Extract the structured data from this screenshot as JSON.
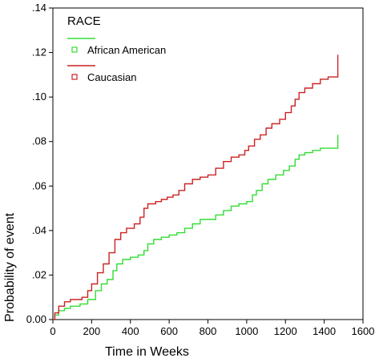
{
  "chart_data": {
    "type": "line",
    "title": "",
    "xlabel": "Time in Weeks",
    "ylabel": "Probability of event",
    "xlim": [
      0,
      1600
    ],
    "ylim": [
      0,
      0.14
    ],
    "x_ticks": [
      "0",
      "200",
      "400",
      "600",
      "800",
      "1000",
      "1200",
      "1400",
      "1600"
    ],
    "y_ticks": [
      "0.00",
      ".02",
      ".04",
      ".06",
      ".08",
      ".10",
      ".12",
      ".14"
    ],
    "grid": false,
    "legend": {
      "title": "RACE",
      "position": "top-left"
    },
    "series": [
      {
        "name": "African American",
        "color": "#33dd33",
        "marker": "square",
        "points": [
          [
            0,
            0
          ],
          [
            10,
            0.002
          ],
          [
            30,
            0.004
          ],
          [
            60,
            0.005
          ],
          [
            90,
            0.006
          ],
          [
            140,
            0.007
          ],
          [
            180,
            0.009
          ],
          [
            220,
            0.013
          ],
          [
            250,
            0.016
          ],
          [
            280,
            0.018
          ],
          [
            310,
            0.022
          ],
          [
            330,
            0.025
          ],
          [
            360,
            0.027
          ],
          [
            400,
            0.028
          ],
          [
            440,
            0.029
          ],
          [
            470,
            0.031
          ],
          [
            490,
            0.034
          ],
          [
            520,
            0.036
          ],
          [
            560,
            0.037
          ],
          [
            600,
            0.038
          ],
          [
            640,
            0.039
          ],
          [
            680,
            0.041
          ],
          [
            720,
            0.043
          ],
          [
            760,
            0.045
          ],
          [
            800,
            0.045
          ],
          [
            840,
            0.047
          ],
          [
            880,
            0.049
          ],
          [
            920,
            0.051
          ],
          [
            960,
            0.052
          ],
          [
            1000,
            0.053
          ],
          [
            1030,
            0.056
          ],
          [
            1050,
            0.058
          ],
          [
            1080,
            0.061
          ],
          [
            1110,
            0.063
          ],
          [
            1150,
            0.065
          ],
          [
            1190,
            0.067
          ],
          [
            1220,
            0.069
          ],
          [
            1250,
            0.072
          ],
          [
            1270,
            0.074
          ],
          [
            1300,
            0.075
          ],
          [
            1340,
            0.076
          ],
          [
            1380,
            0.077
          ],
          [
            1470,
            0.077
          ],
          [
            1470,
            0.083
          ]
        ]
      },
      {
        "name": "Caucasian",
        "color": "#cc2222",
        "marker": "square",
        "points": [
          [
            0,
            0
          ],
          [
            10,
            0.003
          ],
          [
            30,
            0.006
          ],
          [
            60,
            0.008
          ],
          [
            90,
            0.009
          ],
          [
            150,
            0.01
          ],
          [
            180,
            0.013
          ],
          [
            200,
            0.016
          ],
          [
            230,
            0.021
          ],
          [
            260,
            0.025
          ],
          [
            290,
            0.03
          ],
          [
            320,
            0.036
          ],
          [
            350,
            0.039
          ],
          [
            380,
            0.041
          ],
          [
            420,
            0.043
          ],
          [
            450,
            0.046
          ],
          [
            470,
            0.05
          ],
          [
            490,
            0.052
          ],
          [
            530,
            0.053
          ],
          [
            560,
            0.054
          ],
          [
            590,
            0.055
          ],
          [
            620,
            0.056
          ],
          [
            650,
            0.058
          ],
          [
            680,
            0.061
          ],
          [
            720,
            0.063
          ],
          [
            760,
            0.064
          ],
          [
            800,
            0.065
          ],
          [
            840,
            0.068
          ],
          [
            880,
            0.071
          ],
          [
            920,
            0.073
          ],
          [
            960,
            0.074
          ],
          [
            990,
            0.076
          ],
          [
            1010,
            0.078
          ],
          [
            1040,
            0.081
          ],
          [
            1070,
            0.083
          ],
          [
            1100,
            0.086
          ],
          [
            1130,
            0.088
          ],
          [
            1170,
            0.09
          ],
          [
            1200,
            0.093
          ],
          [
            1230,
            0.096
          ],
          [
            1250,
            0.099
          ],
          [
            1270,
            0.102
          ],
          [
            1300,
            0.104
          ],
          [
            1340,
            0.106
          ],
          [
            1380,
            0.108
          ],
          [
            1420,
            0.109
          ],
          [
            1470,
            0.109
          ],
          [
            1470,
            0.119
          ]
        ]
      }
    ]
  }
}
